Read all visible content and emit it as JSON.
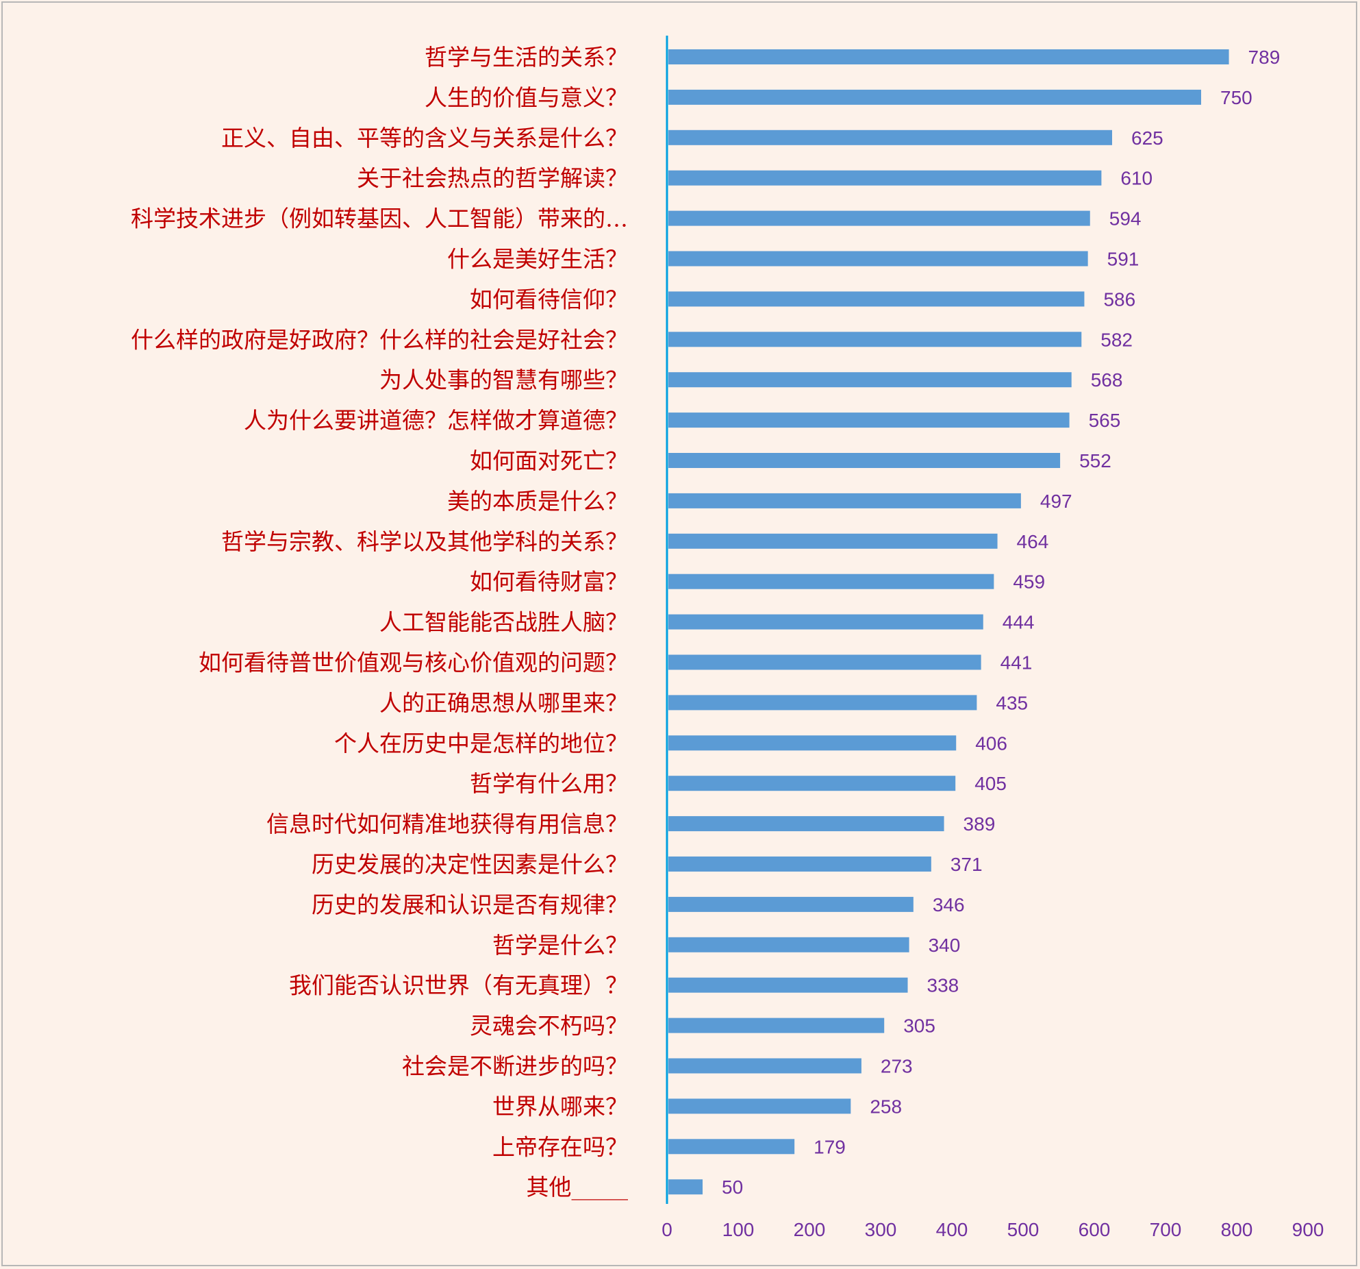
{
  "chart_data": {
    "type": "bar",
    "orientation": "horizontal",
    "categories": [
      "哲学与生活的关系？",
      "人生的价值与意义？",
      "正义、自由、平等的含义与关系是什么？",
      "关于社会热点的哲学解读？",
      "科学技术进步（例如转基因、人工智能）带来的…",
      "什么是美好生活？",
      "如何看待信仰？",
      "什么样的政府是好政府？什么样的社会是好社会？",
      "为人处事的智慧有哪些？",
      "人为什么要讲道德？怎样做才算道德？",
      "如何面对死亡？",
      "美的本质是什么？",
      "哲学与宗教、科学以及其他学科的关系？",
      "如何看待财富？",
      "人工智能能否战胜人脑？",
      "如何看待普世价值观与核心价值观的问题？",
      "人的正确思想从哪里来？",
      "个人在历史中是怎样的地位？",
      "哲学有什么用？",
      "信息时代如何精准地获得有用信息？",
      "历史发展的决定性因素是什么？",
      "历史的发展和认识是否有规律？",
      "哲学是什么？",
      "我们能否认识世界（有无真理）？",
      "灵魂会不朽吗？",
      "社会是不断进步的吗？",
      "世界从哪来？",
      "上帝存在吗？",
      "其他_____"
    ],
    "values": [
      789,
      750,
      625,
      610,
      594,
      591,
      586,
      582,
      568,
      565,
      552,
      497,
      464,
      459,
      444,
      441,
      435,
      406,
      405,
      389,
      371,
      346,
      340,
      338,
      305,
      273,
      258,
      179,
      50
    ],
    "xlim": [
      0,
      900
    ],
    "xticks": [
      "0",
      "100",
      "200",
      "300",
      "400",
      "500",
      "600",
      "700",
      "800",
      "900"
    ],
    "title": "",
    "xlabel": "",
    "ylabel": "",
    "grid": false,
    "legend": "none",
    "colors": {
      "bar": "#5b9bd5",
      "axis": "#00a0e0",
      "category_text": "#c00000",
      "value_text": "#7030a0",
      "background": "#fdf2ea",
      "border": "#b7b7b7"
    }
  }
}
